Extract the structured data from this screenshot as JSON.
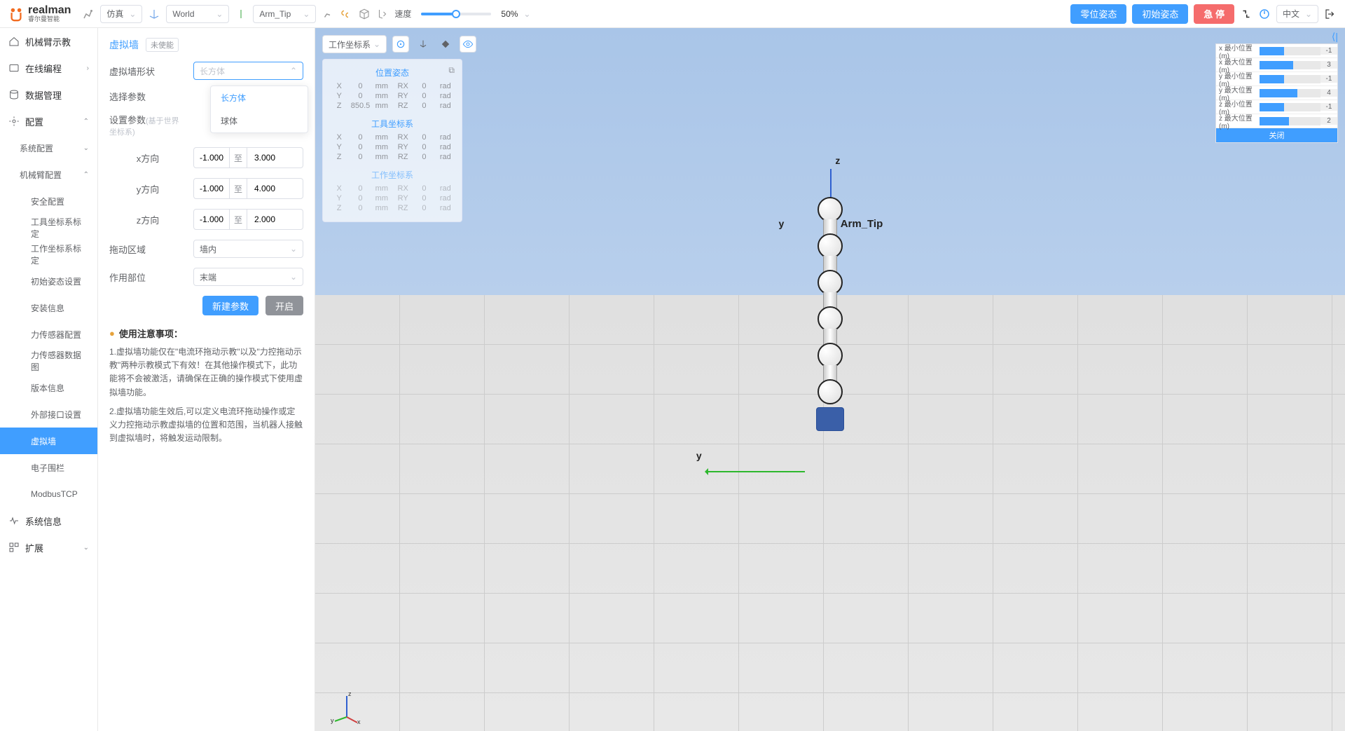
{
  "brand": {
    "name": "realman",
    "sub": "睿尔曼智能"
  },
  "topbar": {
    "mode": "仿真",
    "world_sel": "World",
    "tool_sel": "Arm_Tip",
    "speed_label": "速度",
    "speed_value": "50%",
    "speed_pct": 50,
    "btn_zero": "零位姿态",
    "btn_init": "初始姿态",
    "btn_stop": "急 停",
    "lang": "中文"
  },
  "nav": {
    "teach": "机械臂示教",
    "program": "在线编程",
    "data": "数据管理",
    "config": "配置",
    "sys_config": "系统配置",
    "arm_config": "机械臂配置",
    "items": {
      "safety": "安全配置",
      "tool_frame": "工具坐标系标定",
      "work_frame": "工作坐标系标定",
      "init_pose": "初始姿态设置",
      "install": "安装信息",
      "force_cfg": "力传感器配置",
      "force_data": "力传感器数据图",
      "version": "版本信息",
      "ext_port": "外部接口设置",
      "vwall": "虚拟墙",
      "efence": "电子围栏",
      "modbus": "ModbusTCP"
    },
    "sysinfo": "系统信息",
    "extend": "扩展"
  },
  "panel": {
    "title": "虚拟墙",
    "badge": "未使能",
    "shape_label": "虚拟墙形状",
    "shape_value": "长方体",
    "shape_options": {
      "cuboid": "长方体",
      "sphere": "球体"
    },
    "param_label": "选择参数",
    "set_param_label": "设置参数",
    "set_param_hint": "(基于世界坐标系)",
    "x_label": "x方向",
    "x_from": "-1.000",
    "to": "至",
    "x_to": "3.000",
    "y_label": "y方向",
    "y_from": "-1.000",
    "y_to": "4.000",
    "z_label": "z方向",
    "z_from": "-1.000",
    "z_to": "2.000",
    "drag_label": "拖动区域",
    "drag_value": "墙内",
    "part_label": "作用部位",
    "part_value": "末端",
    "btn_new": "新建参数",
    "btn_enable": "开启",
    "notice_title": "使用注意事项：",
    "notice1": "1.虚拟墙功能仅在\"电流环拖动示教\"以及\"力控拖动示教\"两种示教模式下有效！在其他操作模式下，此功能将不会被激活，请确保在正确的操作模式下使用虚拟墙功能。",
    "notice2": "2.虚拟墙功能生效后,可以定义电流环拖动操作或定义力控拖动示教虚拟墙的位置和范围，当机器人接触到虚拟墙时，将触发运动限制。"
  },
  "view": {
    "frame_sel": "工作坐标系",
    "arm_tip_label": "Arm_Tip",
    "axis_z": "z",
    "axis_y": "y",
    "axis_x": "x"
  },
  "pose": {
    "title": "位置姿态",
    "tool_title": "工具坐标系",
    "work_title": "工作坐标系",
    "rows": [
      {
        "a": "X",
        "v1": "0",
        "u1": "mm",
        "a2": "RX",
        "v2": "0",
        "u2": "rad"
      },
      {
        "a": "Y",
        "v1": "0",
        "u1": "mm",
        "a2": "RY",
        "v2": "0",
        "u2": "rad"
      },
      {
        "a": "Z",
        "v1": "850.5",
        "u1": "mm",
        "a2": "RZ",
        "v2": "0",
        "u2": "rad"
      }
    ],
    "rows_zero": [
      {
        "a": "X",
        "v1": "0",
        "u1": "mm",
        "a2": "RX",
        "v2": "0",
        "u2": "rad"
      },
      {
        "a": "Y",
        "v1": "0",
        "u1": "mm",
        "a2": "RY",
        "v2": "0",
        "u2": "rad"
      },
      {
        "a": "Z",
        "v1": "0",
        "u1": "mm",
        "a2": "RZ",
        "v2": "0",
        "u2": "rad"
      }
    ]
  },
  "limits": {
    "rows": [
      {
        "label": "x 最小位置(m)",
        "pct": 40,
        "val": "-1"
      },
      {
        "label": "x 最大位置(m)",
        "pct": 55,
        "val": "3"
      },
      {
        "label": "y 最小位置(m)",
        "pct": 40,
        "val": "-1"
      },
      {
        "label": "y 最大位置(m)",
        "pct": 62,
        "val": "4"
      },
      {
        "label": "z 最小位置(m)",
        "pct": 40,
        "val": "-1"
      },
      {
        "label": "z 最大位置(m)",
        "pct": 48,
        "val": "2"
      }
    ],
    "close": "关闭"
  }
}
